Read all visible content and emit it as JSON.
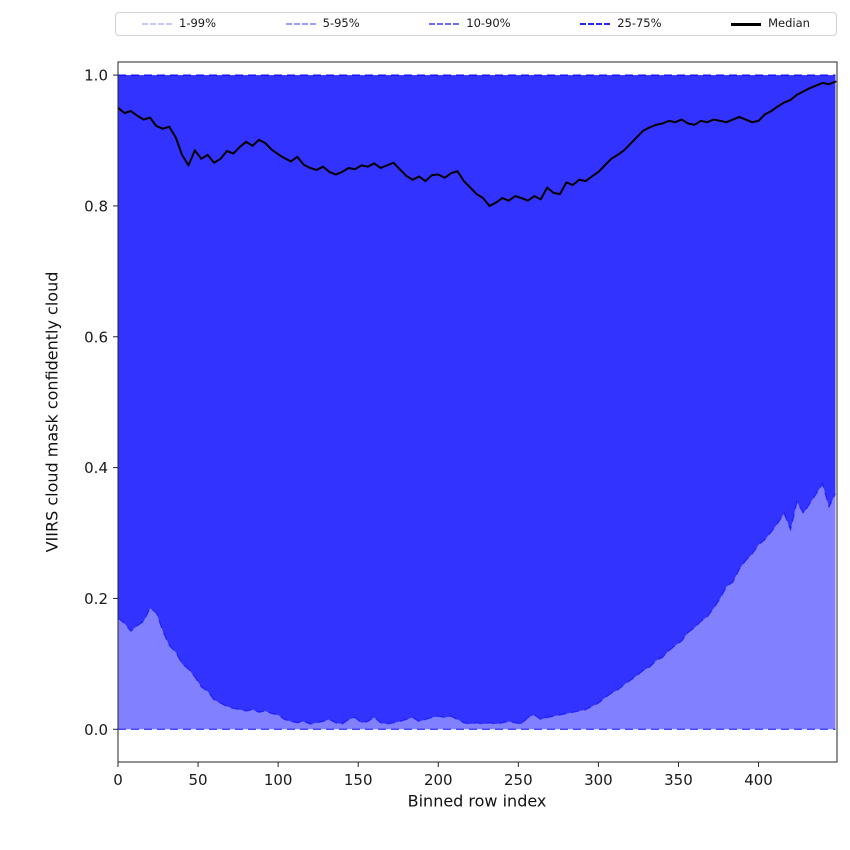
{
  "figure": {
    "background": "#ffffff"
  },
  "legend": {
    "items": [
      {
        "label": "1-99%",
        "color": "rgba(0,0,255,0.22)",
        "dash": "dashed"
      },
      {
        "label": "5-95%",
        "color": "rgba(0,0,255,0.38)",
        "dash": "dashed"
      },
      {
        "label": "10-90%",
        "color": "rgba(0,0,255,0.58)",
        "dash": "dashed"
      },
      {
        "label": "25-75%",
        "color": "rgba(0,0,255,0.85)",
        "dash": "dashed"
      },
      {
        "label": "Median",
        "color": "#000000",
        "dash": "solid"
      }
    ]
  },
  "chart_data": {
    "type": "area",
    "title": "",
    "xlabel": "Binned row index",
    "ylabel": "VIIRS cloud mask confidently cloud",
    "xlim": [
      0,
      449
    ],
    "ylim": [
      -0.05,
      1.02
    ],
    "xticks": [
      0,
      50,
      100,
      150,
      200,
      250,
      300,
      350,
      400
    ],
    "yticks": [
      0.0,
      0.2,
      0.4,
      0.6,
      0.8,
      1.0
    ],
    "grid": false,
    "legend_position": "top",
    "color": "#0000ff",
    "median_color": "#000000",
    "x": [
      0,
      4,
      8,
      12,
      16,
      20,
      24,
      28,
      32,
      36,
      40,
      44,
      48,
      52,
      56,
      60,
      64,
      68,
      72,
      76,
      80,
      84,
      88,
      92,
      96,
      100,
      104,
      108,
      112,
      116,
      120,
      124,
      128,
      132,
      136,
      140,
      144,
      148,
      152,
      156,
      160,
      164,
      168,
      172,
      176,
      180,
      184,
      188,
      192,
      196,
      200,
      204,
      208,
      212,
      216,
      220,
      224,
      228,
      232,
      236,
      240,
      244,
      248,
      252,
      256,
      260,
      264,
      268,
      272,
      276,
      280,
      284,
      288,
      292,
      296,
      300,
      304,
      308,
      312,
      316,
      320,
      324,
      328,
      332,
      336,
      340,
      344,
      348,
      352,
      356,
      360,
      364,
      368,
      372,
      376,
      380,
      384,
      388,
      392,
      396,
      400,
      404,
      408,
      412,
      416,
      420,
      424,
      428,
      432,
      436,
      440,
      444,
      448
    ],
    "series": {
      "median": [
        0.95,
        0.942,
        0.945,
        0.938,
        0.932,
        0.935,
        0.922,
        0.918,
        0.921,
        0.905,
        0.878,
        0.862,
        0.885,
        0.872,
        0.878,
        0.866,
        0.872,
        0.884,
        0.88,
        0.89,
        0.898,
        0.892,
        0.901,
        0.896,
        0.886,
        0.879,
        0.873,
        0.868,
        0.875,
        0.863,
        0.858,
        0.855,
        0.86,
        0.852,
        0.848,
        0.852,
        0.858,
        0.856,
        0.862,
        0.86,
        0.865,
        0.858,
        0.862,
        0.866,
        0.856,
        0.846,
        0.84,
        0.845,
        0.838,
        0.847,
        0.848,
        0.843,
        0.85,
        0.853,
        0.838,
        0.828,
        0.818,
        0.812,
        0.8,
        0.805,
        0.812,
        0.808,
        0.815,
        0.812,
        0.808,
        0.815,
        0.81,
        0.828,
        0.82,
        0.818,
        0.836,
        0.832,
        0.84,
        0.838,
        0.845,
        0.852,
        0.862,
        0.872,
        0.878,
        0.885,
        0.895,
        0.905,
        0.915,
        0.92,
        0.924,
        0.926,
        0.93,
        0.928,
        0.932,
        0.926,
        0.924,
        0.93,
        0.928,
        0.932,
        0.93,
        0.928,
        0.932,
        0.936,
        0.932,
        0.928,
        0.93,
        0.94,
        0.945,
        0.952,
        0.958,
        0.962,
        0.97,
        0.975,
        0.98,
        0.984,
        0.988,
        0.986,
        0.99
      ],
      "p25": [
        0.17,
        0.162,
        0.15,
        0.158,
        0.165,
        0.185,
        0.178,
        0.15,
        0.128,
        0.118,
        0.1,
        0.092,
        0.08,
        0.065,
        0.058,
        0.045,
        0.04,
        0.035,
        0.032,
        0.03,
        0.028,
        0.03,
        0.026,
        0.028,
        0.024,
        0.022,
        0.015,
        0.012,
        0.01,
        0.012,
        0.008,
        0.01,
        0.012,
        0.015,
        0.01,
        0.008,
        0.015,
        0.018,
        0.01,
        0.012,
        0.018,
        0.01,
        0.008,
        0.01,
        0.012,
        0.015,
        0.018,
        0.012,
        0.015,
        0.018,
        0.02,
        0.018,
        0.02,
        0.015,
        0.01,
        0.008,
        0.01,
        0.008,
        0.01,
        0.008,
        0.01,
        0.012,
        0.01,
        0.008,
        0.018,
        0.022,
        0.015,
        0.018,
        0.02,
        0.022,
        0.024,
        0.026,
        0.028,
        0.03,
        0.035,
        0.04,
        0.048,
        0.055,
        0.06,
        0.068,
        0.075,
        0.082,
        0.09,
        0.095,
        0.105,
        0.11,
        0.12,
        0.128,
        0.135,
        0.148,
        0.155,
        0.165,
        0.172,
        0.185,
        0.2,
        0.218,
        0.225,
        0.245,
        0.258,
        0.268,
        0.282,
        0.29,
        0.302,
        0.315,
        0.33,
        0.305,
        0.348,
        0.33,
        0.345,
        0.36,
        0.375,
        0.34,
        0.36
      ],
      "p75": 1.0,
      "p90": 1.0,
      "p95": 1.0,
      "p99": 1.0,
      "p10": 0.0,
      "p05": 0.0,
      "p01": 0.0
    },
    "bands": [
      {
        "label": "1-99%",
        "lo": "p01",
        "hi": "p99",
        "fill_alpha": 0.12,
        "line_alpha": 0.25
      },
      {
        "label": "5-95%",
        "lo": "p05",
        "hi": "p95",
        "fill_alpha": 0.2,
        "line_alpha": 0.35
      },
      {
        "label": "10-90%",
        "lo": "p10",
        "hi": "p90",
        "fill_alpha": 0.28,
        "line_alpha": 0.5
      },
      {
        "label": "25-75%",
        "lo": "p25",
        "hi": "p75",
        "fill_alpha": 0.6,
        "line_alpha": 0.6
      }
    ],
    "median_label": "Median"
  }
}
